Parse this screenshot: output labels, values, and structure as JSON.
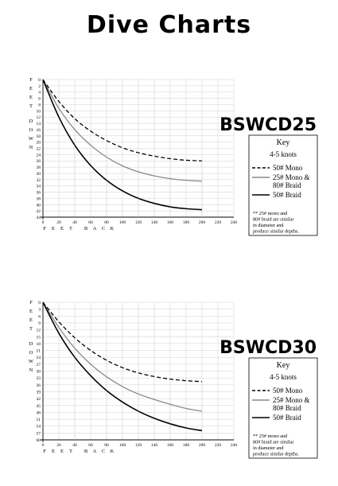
{
  "title": "Dive Charts",
  "chart_data": [
    {
      "type": "line",
      "title": "BSWCD25",
      "ylabel": "FEET DOWN",
      "xlabel": "FEET BACK",
      "xlim": [
        0,
        240
      ],
      "ylim": [
        0,
        44
      ],
      "x_ticks": [
        0,
        20,
        40,
        60,
        80,
        100,
        120,
        140,
        160,
        180,
        200,
        220,
        240
      ],
      "y_ticks": [
        0,
        2,
        4,
        6,
        8,
        10,
        12,
        14,
        16,
        18,
        20,
        22,
        24,
        26,
        28,
        30,
        32,
        34,
        36,
        38,
        40,
        42,
        44
      ],
      "y_inverted": true,
      "grid": true,
      "legend_position": "right",
      "key": {
        "title": "Key",
        "subtitle": "4-5 knots",
        "note": [
          "** 25# mono and",
          "80# braid are similar",
          "in diameter and",
          "produce similar depths."
        ]
      },
      "x": [
        0,
        20,
        40,
        60,
        80,
        100,
        120,
        140,
        160,
        180,
        200
      ],
      "series": [
        {
          "name": [
            "50# Mono"
          ],
          "style": "dashed",
          "color": "#000000",
          "values": [
            0,
            7,
            12.5,
            16.5,
            19.5,
            21.8,
            23.4,
            24.5,
            25.3,
            25.8,
            26
          ]
        },
        {
          "name": [
            "25# Mono &",
            "80# Braid"
          ],
          "style": "solid",
          "color": "#888888",
          "values": [
            0,
            9.2,
            16,
            21,
            24.8,
            27.6,
            29.5,
            30.8,
            31.7,
            32.2,
            32.5
          ]
        },
        {
          "name": [
            "50# Braid"
          ],
          "style": "solid",
          "color": "#000000",
          "values": [
            0,
            12,
            21,
            27.5,
            32.2,
            35.6,
            38,
            39.6,
            40.7,
            41.3,
            41.6
          ]
        }
      ]
    },
    {
      "type": "line",
      "title": "BSWCD30",
      "ylabel": "FEET DOWN",
      "xlabel": "FEET BACK",
      "xlim": [
        0,
        240
      ],
      "ylim": [
        0,
        60
      ],
      "x_ticks": [
        0,
        20,
        40,
        60,
        80,
        100,
        120,
        140,
        160,
        180,
        200,
        220,
        240
      ],
      "y_ticks": [
        0,
        3,
        6,
        9,
        12,
        15,
        18,
        21,
        24,
        27,
        30,
        33,
        36,
        39,
        42,
        45,
        48,
        51,
        54,
        57,
        60
      ],
      "y_inverted": true,
      "grid": true,
      "legend_position": "right",
      "key": {
        "title": "Key",
        "subtitle": "4-5 knots",
        "note": [
          "** 25# mono and",
          "80# braid are similar",
          "in diameter and",
          "produce similar depths."
        ]
      },
      "x": [
        0,
        20,
        40,
        60,
        80,
        100,
        120,
        140,
        160,
        180,
        200
      ],
      "series": [
        {
          "name": [
            "50# Mono"
          ],
          "style": "dashed",
          "color": "#000000",
          "values": [
            0,
            8.5,
            15.5,
            21,
            25.3,
            28.5,
            30.8,
            32.4,
            33.5,
            34.2,
            34.6
          ]
        },
        {
          "name": [
            "25# Mono &",
            "80# Braid"
          ],
          "style": "solid",
          "color": "#888888",
          "values": [
            0,
            11,
            20,
            27,
            32.5,
            36.8,
            40,
            42.4,
            44.5,
            46.3,
            47.5
          ]
        },
        {
          "name": [
            "50# Braid"
          ],
          "style": "solid",
          "color": "#000000",
          "values": [
            0,
            13.5,
            24,
            32,
            38.5,
            43.5,
            47.5,
            50.6,
            53,
            54.8,
            56
          ]
        }
      ]
    }
  ]
}
